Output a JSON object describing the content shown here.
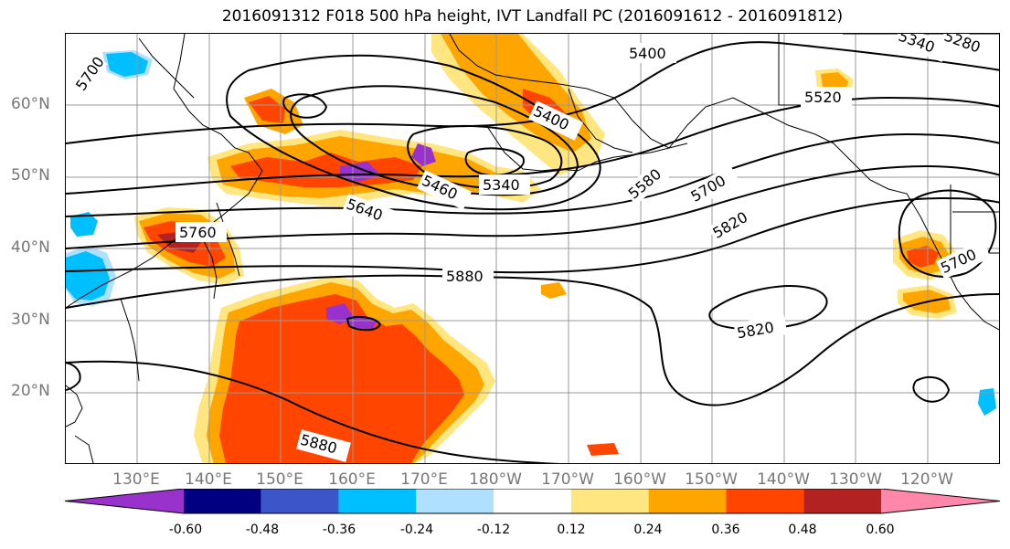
{
  "title": "2016091312 F018 500 hPa height, IVT Landfall PC (2016091612 - 2016091812)",
  "lat_labels": [
    "60°N",
    "50°N",
    "40°N",
    "30°N",
    "20°N"
  ],
  "lon_labels": [
    "130°E",
    "140°E",
    "150°E",
    "160°E",
    "170°E",
    "180°W",
    "170°W",
    "160°W",
    "150°W",
    "140°W",
    "130°W",
    "120°W"
  ],
  "contour_labels": [
    "5700",
    "5400",
    "5340",
    "5280",
    "5520",
    "5400",
    "5460",
    "5340",
    "5580",
    "5700",
    "5640",
    "5760",
    "5820",
    "5880",
    "5700",
    "5820",
    "5880"
  ],
  "colorbar": {
    "colors": [
      "#9932cc",
      "#000080",
      "#3a56c8",
      "#00bfff",
      "#b0e0ff",
      "#ffffff",
      "#ffe680",
      "#ffa500",
      "#ff4500",
      "#b22222",
      "#ff88aa"
    ],
    "labels": [
      "-0.60",
      "-0.48",
      "-0.36",
      "-0.24",
      "-0.12",
      "0.12",
      "0.24",
      "0.36",
      "0.48",
      "0.60"
    ]
  },
  "colors": {
    "positive_light": "#ffe680",
    "positive_mid": "#ffa500",
    "positive_strong": "#ff4500",
    "positive_max": "#b22222",
    "negative_light": "#b0e0ff",
    "negative_mid": "#00bfff"
  }
}
